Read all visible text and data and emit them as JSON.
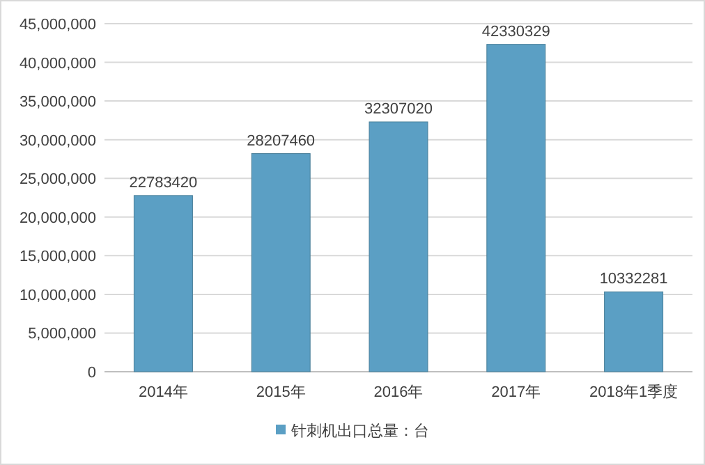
{
  "chart_data": {
    "type": "bar",
    "categories": [
      "2014年",
      "2015年",
      "2016年",
      "2017年",
      "2018年1季度"
    ],
    "series": [
      {
        "name": "针刺机出口总量：台",
        "color": "#5b9fc4",
        "values": [
          22783420,
          28207460,
          32307020,
          42330329,
          10332281
        ]
      }
    ],
    "ylim": [
      0,
      45000000
    ],
    "yticks": [
      0,
      {
        "value": 5000000,
        "label": "5,000,000"
      },
      {
        "value": 10000000,
        "label": "10,000,000"
      },
      {
        "value": 15000000,
        "label": "15,000,000"
      },
      {
        "value": 20000000,
        "label": "20,000,000"
      },
      {
        "value": 25000000,
        "label": "25,000,000"
      },
      {
        "value": 30000000,
        "label": "30,000,000"
      },
      {
        "value": 35000000,
        "label": "35,000,000"
      },
      {
        "value": 40000000,
        "label": "40,000,000"
      },
      {
        "value": 45000000,
        "label": "45,000,000"
      }
    ],
    "grid": "y",
    "legend": "bottom",
    "data_labels": true
  }
}
